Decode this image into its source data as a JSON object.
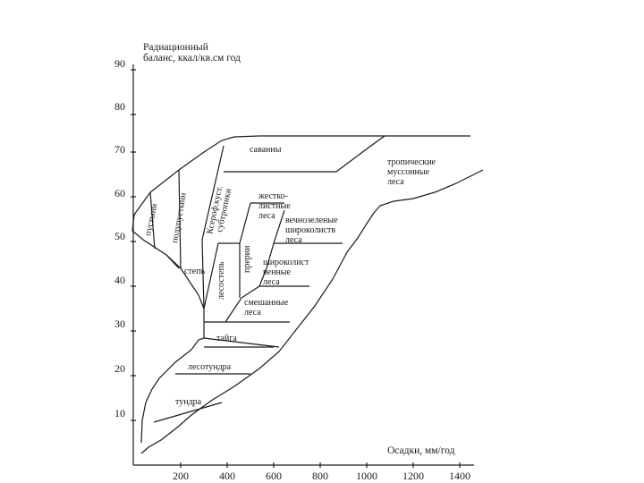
{
  "title": {
    "line1": "Радиационный",
    "line2": "баланс, ккал/кв.см год"
  },
  "x_axis": {
    "label": "Осадки, мм/год",
    "ticks": [
      "200",
      "400",
      "600",
      "800",
      "1000",
      "1200",
      "1400"
    ]
  },
  "y_axis": {
    "ticks": [
      "10",
      "20",
      "30",
      "40",
      "50",
      "60",
      "70",
      "80",
      "90"
    ]
  },
  "zones": {
    "savanna": "саванны",
    "tropical": [
      "тропические",
      "муссонные",
      "леса"
    ],
    "deserts": "пустыни",
    "semideserts": "полупустыни",
    "dry_steppes": [
      "Ксероф.куст.",
      "субтропики"
    ],
    "hardleaf": [
      "жестко-",
      "листные",
      "леса"
    ],
    "evergreen": [
      "вечнозеленые",
      "широколиств",
      "леса"
    ],
    "meadows": "прерии",
    "steppe": "степь",
    "forest_steppe": "лесостепь",
    "broadleaf": [
      "широколист",
      "венные",
      "леса"
    ],
    "mixed": [
      "смешанные",
      "леса"
    ],
    "taiga": "тайга",
    "foresttundra": "лесотундра",
    "tundra": "тундра"
  }
}
